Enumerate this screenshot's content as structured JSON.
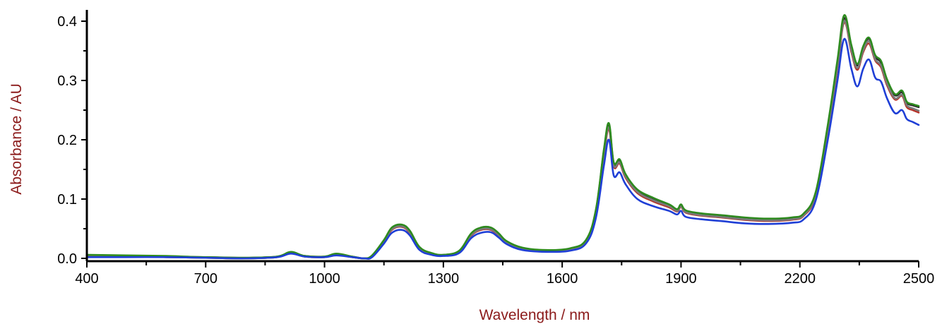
{
  "chart_data": {
    "type": "line",
    "title": "",
    "xlabel": "Wavelength / nm",
    "ylabel": "Absorbance / AU",
    "xlim": [
      400,
      2500
    ],
    "ylim": [
      0.0,
      0.42
    ],
    "x_ticks": [
      400,
      700,
      1000,
      1300,
      1600,
      1900,
      2200,
      2500
    ],
    "x_tick_labels": [
      "400",
      "700",
      "1000",
      "1300",
      "1600",
      "1900",
      "2200",
      "2500"
    ],
    "x_minor_step": 150,
    "y_ticks": [
      0.0,
      0.1,
      0.2,
      0.3,
      0.4
    ],
    "y_tick_labels": [
      "0.0",
      "0.1",
      "0.2",
      "0.3",
      "0.4"
    ],
    "grid": false,
    "legend": "none",
    "x": [
      400,
      500,
      600,
      700,
      800,
      880,
      915,
      950,
      1000,
      1030,
      1070,
      1100,
      1120,
      1150,
      1170,
      1195,
      1215,
      1240,
      1270,
      1300,
      1340,
      1370,
      1395,
      1420,
      1440,
      1460,
      1500,
      1560,
      1620,
      1660,
      1685,
      1705,
      1718,
      1730,
      1745,
      1760,
      1790,
      1830,
      1870,
      1890,
      1900,
      1912,
      1950,
      2000,
      2060,
      2120,
      2180,
      2210,
      2240,
      2270,
      2295,
      2312,
      2330,
      2345,
      2360,
      2375,
      2390,
      2405,
      2420,
      2440,
      2458,
      2470,
      2485,
      2500
    ],
    "series": [
      {
        "color": "#2a2a2a",
        "values": [
          0.004,
          0.004,
          0.003,
          0.002,
          0.001,
          0.003,
          0.01,
          0.004,
          0.003,
          0.007,
          0.003,
          0.0,
          0.004,
          0.03,
          0.05,
          0.055,
          0.045,
          0.018,
          0.008,
          0.006,
          0.012,
          0.04,
          0.05,
          0.05,
          0.04,
          0.028,
          0.017,
          0.013,
          0.016,
          0.03,
          0.08,
          0.18,
          0.225,
          0.16,
          0.165,
          0.14,
          0.115,
          0.1,
          0.09,
          0.082,
          0.09,
          0.08,
          0.075,
          0.072,
          0.068,
          0.066,
          0.068,
          0.075,
          0.11,
          0.22,
          0.33,
          0.405,
          0.355,
          0.325,
          0.355,
          0.37,
          0.34,
          0.33,
          0.3,
          0.275,
          0.28,
          0.262,
          0.258,
          0.255
        ]
      },
      {
        "color": "#b5332a",
        "values": [
          0.003,
          0.003,
          0.002,
          0.001,
          0.0,
          0.002,
          0.009,
          0.003,
          0.002,
          0.006,
          0.002,
          0.0,
          0.003,
          0.028,
          0.048,
          0.053,
          0.043,
          0.016,
          0.007,
          0.005,
          0.011,
          0.038,
          0.048,
          0.048,
          0.038,
          0.026,
          0.016,
          0.012,
          0.015,
          0.028,
          0.076,
          0.172,
          0.218,
          0.155,
          0.16,
          0.136,
          0.11,
          0.096,
          0.086,
          0.079,
          0.087,
          0.077,
          0.072,
          0.069,
          0.065,
          0.063,
          0.065,
          0.072,
          0.106,
          0.212,
          0.32,
          0.398,
          0.348,
          0.318,
          0.348,
          0.362,
          0.334,
          0.322,
          0.292,
          0.268,
          0.274,
          0.255,
          0.25,
          0.246
        ]
      },
      {
        "color": "#7a7a7a",
        "values": [
          0.003,
          0.003,
          0.002,
          0.001,
          0.0,
          0.002,
          0.009,
          0.003,
          0.002,
          0.006,
          0.002,
          0.0,
          0.003,
          0.029,
          0.049,
          0.054,
          0.044,
          0.017,
          0.007,
          0.005,
          0.011,
          0.039,
          0.049,
          0.049,
          0.039,
          0.027,
          0.016,
          0.012,
          0.015,
          0.029,
          0.078,
          0.175,
          0.221,
          0.157,
          0.162,
          0.138,
          0.112,
          0.098,
          0.088,
          0.08,
          0.088,
          0.078,
          0.073,
          0.07,
          0.066,
          0.064,
          0.066,
          0.073,
          0.108,
          0.215,
          0.324,
          0.4,
          0.351,
          0.321,
          0.351,
          0.366,
          0.336,
          0.325,
          0.295,
          0.27,
          0.276,
          0.258,
          0.253,
          0.249
        ]
      },
      {
        "color": "#2e8b1f",
        "values": [
          0.006,
          0.005,
          0.004,
          0.002,
          0.001,
          0.003,
          0.011,
          0.004,
          0.003,
          0.008,
          0.003,
          0.0,
          0.005,
          0.031,
          0.052,
          0.057,
          0.047,
          0.019,
          0.009,
          0.006,
          0.013,
          0.042,
          0.052,
          0.052,
          0.042,
          0.029,
          0.018,
          0.014,
          0.017,
          0.031,
          0.082,
          0.182,
          0.228,
          0.162,
          0.167,
          0.142,
          0.116,
          0.102,
          0.091,
          0.083,
          0.091,
          0.081,
          0.076,
          0.073,
          0.069,
          0.067,
          0.069,
          0.076,
          0.112,
          0.223,
          0.335,
          0.41,
          0.36,
          0.328,
          0.358,
          0.372,
          0.343,
          0.333,
          0.302,
          0.277,
          0.283,
          0.264,
          0.26,
          0.257
        ]
      },
      {
        "color": "#1f3fd6",
        "values": [
          0.002,
          0.002,
          0.002,
          0.001,
          0.0,
          0.002,
          0.008,
          0.003,
          0.002,
          0.005,
          0.002,
          0.0,
          0.002,
          0.025,
          0.043,
          0.048,
          0.039,
          0.014,
          0.006,
          0.004,
          0.009,
          0.034,
          0.043,
          0.044,
          0.035,
          0.024,
          0.014,
          0.011,
          0.013,
          0.025,
          0.068,
          0.155,
          0.2,
          0.14,
          0.145,
          0.125,
          0.1,
          0.088,
          0.08,
          0.074,
          0.08,
          0.07,
          0.066,
          0.063,
          0.059,
          0.058,
          0.06,
          0.066,
          0.098,
          0.198,
          0.3,
          0.37,
          0.32,
          0.29,
          0.32,
          0.335,
          0.305,
          0.298,
          0.27,
          0.245,
          0.25,
          0.235,
          0.23,
          0.225
        ]
      }
    ]
  }
}
